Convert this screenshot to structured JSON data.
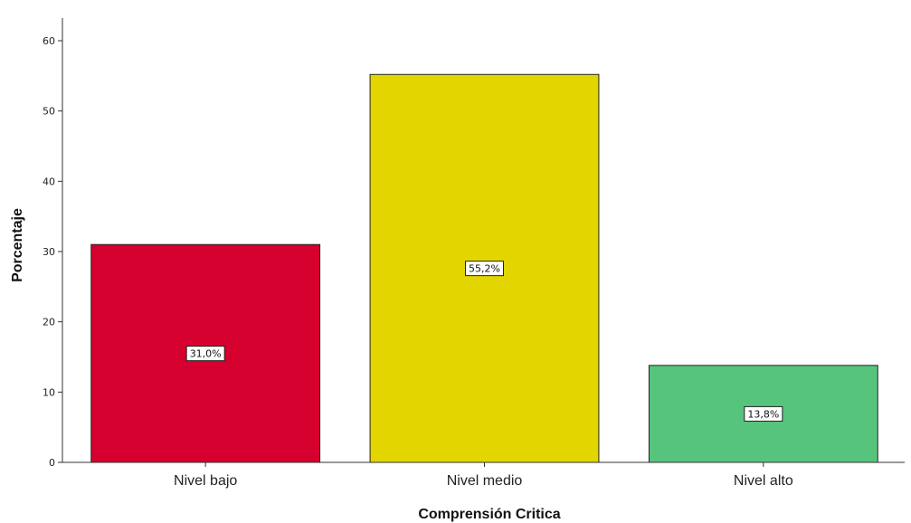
{
  "chart_data": {
    "type": "bar",
    "categories": [
      "Nivel bajo",
      "Nivel medio",
      "Nivel alto"
    ],
    "values": [
      31.0,
      55.2,
      13.8
    ],
    "data_labels": [
      "31,0%",
      "55,2%",
      "13,8%"
    ],
    "colors": [
      "#d6002e",
      "#e3d500",
      "#56c47c"
    ],
    "title": "",
    "xlabel": "Comprensión Critica",
    "ylabel": "Porcentaje",
    "ylim": [
      0,
      60
    ],
    "yticks": [
      0,
      10,
      20,
      30,
      40,
      50,
      60
    ],
    "grid": false,
    "legend": "none"
  }
}
